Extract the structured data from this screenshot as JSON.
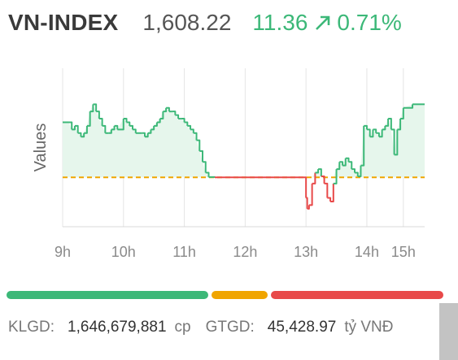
{
  "header": {
    "name": "VN-INDEX",
    "value": "1,608.22",
    "change": "11.36",
    "change_icon": "arrow-up-right-icon",
    "percent": "0.71%",
    "up_color": "#3cb878"
  },
  "chart_data": {
    "type": "line",
    "title": "",
    "xlabel": "",
    "ylabel": "Values",
    "x_ticks": [
      "9h",
      "10h",
      "11h",
      "12h",
      "13h",
      "14h",
      "15h"
    ],
    "x_tick_hours": [
      9,
      10,
      11,
      12,
      13,
      14,
      14.6
    ],
    "reference": 1596.86,
    "ylim": [
      1590,
      1612
    ],
    "grid": "vertical",
    "series": [
      {
        "values": [
          [
            9.0,
            1604.5
          ],
          [
            9.1,
            1604.5
          ],
          [
            9.15,
            1603.5
          ],
          [
            9.2,
            1604.0
          ],
          [
            9.25,
            1603.0
          ],
          [
            9.3,
            1602.5
          ],
          [
            9.35,
            1603.0
          ],
          [
            9.4,
            1604.0
          ],
          [
            9.45,
            1606.0
          ],
          [
            9.5,
            1607.0
          ],
          [
            9.55,
            1606.0
          ],
          [
            9.6,
            1605.0
          ],
          [
            9.65,
            1604.0
          ],
          [
            9.7,
            1603.0
          ],
          [
            9.75,
            1603.0
          ],
          [
            9.8,
            1603.5
          ],
          [
            9.85,
            1604.0
          ],
          [
            9.9,
            1603.5
          ],
          [
            10.0,
            1605.0
          ],
          [
            10.05,
            1604.5
          ],
          [
            10.1,
            1604.0
          ],
          [
            10.15,
            1603.5
          ],
          [
            10.2,
            1603.0
          ],
          [
            10.25,
            1603.0
          ],
          [
            10.3,
            1603.0
          ],
          [
            10.35,
            1602.5
          ],
          [
            10.4,
            1603.0
          ],
          [
            10.45,
            1603.5
          ],
          [
            10.5,
            1604.0
          ],
          [
            10.55,
            1604.5
          ],
          [
            10.6,
            1605.0
          ],
          [
            10.65,
            1606.0
          ],
          [
            10.7,
            1606.5
          ],
          [
            10.75,
            1606.0
          ],
          [
            10.8,
            1606.0
          ],
          [
            10.85,
            1605.5
          ],
          [
            10.9,
            1605.0
          ],
          [
            10.95,
            1605.0
          ],
          [
            11.0,
            1604.5
          ],
          [
            11.05,
            1604.0
          ],
          [
            11.1,
            1603.5
          ],
          [
            11.15,
            1603.0
          ],
          [
            11.2,
            1602.0
          ],
          [
            11.25,
            1600.5
          ],
          [
            11.3,
            1599.0
          ],
          [
            11.35,
            1597.5
          ],
          [
            11.4,
            1596.9
          ],
          [
            11.5,
            1596.86
          ],
          [
            12.0,
            1596.86
          ],
          [
            12.5,
            1596.86
          ],
          [
            12.95,
            1596.86
          ],
          [
            13.0,
            1594.0
          ],
          [
            13.02,
            1592.5
          ],
          [
            13.05,
            1593.0
          ],
          [
            13.1,
            1596.0
          ],
          [
            13.15,
            1597.5
          ],
          [
            13.2,
            1598.0
          ],
          [
            13.25,
            1597.0
          ],
          [
            13.3,
            1596.0
          ],
          [
            13.35,
            1594.0
          ],
          [
            13.4,
            1593.5
          ],
          [
            13.45,
            1596.0
          ],
          [
            13.5,
            1598.0
          ],
          [
            13.55,
            1599.0
          ],
          [
            13.6,
            1598.5
          ],
          [
            13.65,
            1599.5
          ],
          [
            13.7,
            1599.0
          ],
          [
            13.75,
            1598.0
          ],
          [
            13.8,
            1597.5
          ],
          [
            13.85,
            1597.0
          ],
          [
            13.9,
            1598.5
          ],
          [
            13.95,
            1604.0
          ],
          [
            14.0,
            1603.5
          ],
          [
            14.05,
            1602.5
          ],
          [
            14.1,
            1603.5
          ],
          [
            14.15,
            1603.0
          ],
          [
            14.2,
            1602.5
          ],
          [
            14.25,
            1603.5
          ],
          [
            14.3,
            1604.0
          ],
          [
            14.35,
            1605.0
          ],
          [
            14.4,
            1603.5
          ],
          [
            14.45,
            1600.0
          ],
          [
            14.5,
            1603.5
          ],
          [
            14.55,
            1605.0
          ],
          [
            14.6,
            1606.5
          ],
          [
            14.75,
            1607.0
          ],
          [
            14.95,
            1607.0
          ]
        ]
      }
    ],
    "colors": {
      "up": "#3cb878",
      "down": "#e84949",
      "reference": "#f0a500",
      "fill": "#e6f6ec"
    }
  },
  "breadth_bar": [
    {
      "share": 0.47,
      "color": "#3cb878"
    },
    {
      "share": 0.135,
      "color": "#f0a500"
    },
    {
      "share": 0.395,
      "color": "#e84949"
    }
  ],
  "footer": {
    "klgd_label": "KLGD:",
    "klgd_value": "1,646,679,881",
    "klgd_unit": "cp",
    "gtgd_label": "GTGD:",
    "gtgd_value": "45,428.97",
    "gtgd_unit": "tỷ VNĐ"
  }
}
